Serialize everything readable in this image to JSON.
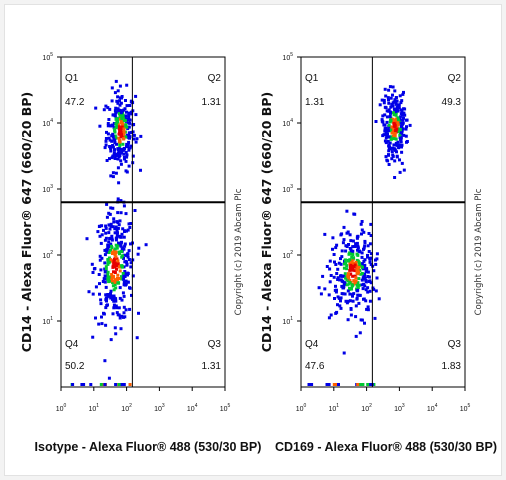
{
  "chart_data": [
    {
      "type": "scatter",
      "subtype": "flow-cytometry-density-dot-plot",
      "xlabel": "Isotype - Alexa Fluor® 488 (530/30 BP)",
      "ylabel": "CD14 - Alexa Fluor® 647 (660/20 BP)",
      "copyright": "Copyright (c) 2019 Abcam Plc",
      "x_scale": "log",
      "y_scale": "log",
      "xlim": [
        1,
        100000
      ],
      "ylim": [
        1,
        100000
      ],
      "x_ticks": [
        "10^0",
        "10^1",
        "10^2",
        "10^3",
        "10^4",
        "10^5"
      ],
      "y_ticks": [
        "10^1",
        "10^2",
        "10^3",
        "10^4",
        "10^5"
      ],
      "gate": {
        "x": 150,
        "y": 630
      },
      "quadrants": [
        {
          "name": "Q1",
          "value": "47.2"
        },
        {
          "name": "Q2",
          "value": "1.31"
        },
        {
          "name": "Q3",
          "value": "1.31"
        },
        {
          "name": "Q4",
          "value": "50.2"
        }
      ],
      "populations": [
        {
          "cx": 60,
          "cy": 8000,
          "sx": 0.22,
          "sy": 0.3,
          "n": 260
        },
        {
          "cx": 40,
          "cy": 70,
          "sx": 0.3,
          "sy": 0.42,
          "n": 330
        }
      ]
    },
    {
      "type": "scatter",
      "subtype": "flow-cytometry-density-dot-plot",
      "xlabel": "CD169 - Alexa Fluor® 488 (530/30 BP)",
      "ylabel": "CD14 - Alexa Fluor® 647 (660/20 BP)",
      "copyright": "Copyright (c) 2019 Abcam Plc",
      "x_scale": "log",
      "y_scale": "log",
      "xlim": [
        1,
        100000
      ],
      "ylim": [
        1,
        100000
      ],
      "x_ticks": [
        "10^0",
        "10^1",
        "10^2",
        "10^3",
        "10^4",
        "10^5"
      ],
      "y_ticks": [
        "10^1",
        "10^2",
        "10^3",
        "10^4",
        "10^5"
      ],
      "gate": {
        "x": 150,
        "y": 630
      },
      "quadrants": [
        {
          "name": "Q1",
          "value": "1.31"
        },
        {
          "name": "Q2",
          "value": "49.3"
        },
        {
          "name": "Q3",
          "value": "1.83"
        },
        {
          "name": "Q4",
          "value": "47.6"
        }
      ],
      "populations": [
        {
          "cx": 650,
          "cy": 9000,
          "sx": 0.2,
          "sy": 0.26,
          "n": 240
        },
        {
          "cx": 35,
          "cy": 60,
          "sx": 0.33,
          "sy": 0.33,
          "n": 330
        }
      ]
    }
  ],
  "colors": {
    "low": "#0000e6",
    "mid": "#00c832",
    "high": "#ff6000",
    "peak": "#e60000",
    "gate_line": "#000000"
  }
}
